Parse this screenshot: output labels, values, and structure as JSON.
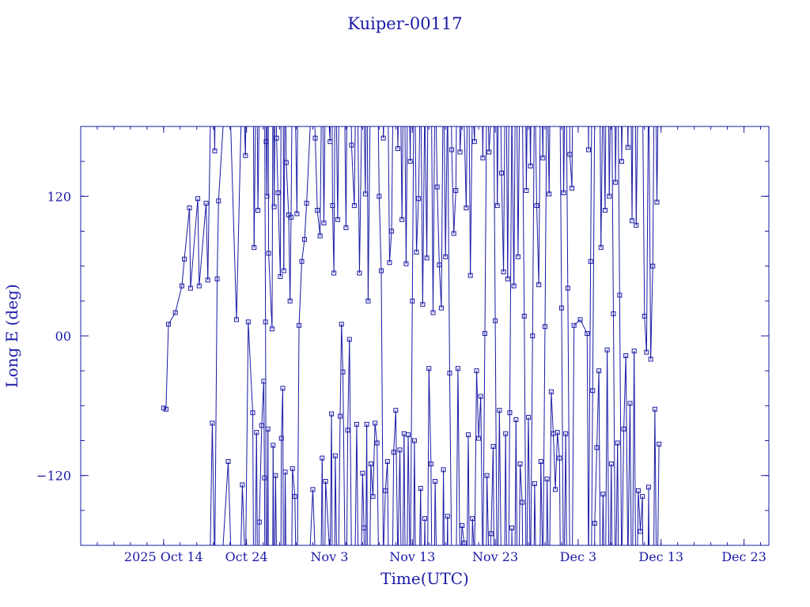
{
  "page": {
    "title": "Kuiper-00117"
  },
  "chart_data": {
    "type": "line",
    "title": "Kuiper-00117",
    "xlabel": "Time(UTC)",
    "ylabel": "Long E (deg)",
    "xlim": [
      "2025-10-04",
      "2025-12-26"
    ],
    "ylim": [
      -180,
      180
    ],
    "x_is_date": true,
    "longitude_wraps_at": [
      -180,
      180
    ],
    "x_ticks": [
      {
        "date": "2025-10-14",
        "label": "2025 Oct 14"
      },
      {
        "date": "2025-10-24",
        "label": "Oct 24"
      },
      {
        "date": "2025-11-03",
        "label": "Nov  3"
      },
      {
        "date": "2025-11-13",
        "label": "Nov 13"
      },
      {
        "date": "2025-11-23",
        "label": "Nov 23"
      },
      {
        "date": "2025-12-03",
        "label": "Dec  3"
      },
      {
        "date": "2025-12-13",
        "label": "Dec 13"
      },
      {
        "date": "2025-12-23",
        "label": "Dec 23"
      }
    ],
    "y_ticks": [
      {
        "value": 120,
        "label": "120"
      },
      {
        "value": 0,
        "label": "00"
      },
      {
        "value": -120,
        "label": "−120"
      }
    ],
    "grid": false,
    "legend": "none",
    "colors": {
      "series": "#1a1aa6",
      "frame": "#1a1aa6",
      "text": "#1a1aa6"
    },
    "marker": "square",
    "series": [
      {
        "points": [
          {
            "x": "2025-10-14 00:00",
            "y": -62
          },
          {
            "x": "2025-10-14 07:00",
            "y": -63
          },
          {
            "x": "2025-10-14 14:00",
            "y": 10
          },
          {
            "x": "2025-10-15 10:00",
            "y": 20
          },
          {
            "x": "2025-10-16 05:00",
            "y": 43
          },
          {
            "x": "2025-10-16 12:00",
            "y": 66
          },
          {
            "x": "2025-10-17 03:00",
            "y": 110
          },
          {
            "x": "2025-10-17 06:00",
            "y": 41
          },
          {
            "x": "2025-10-18 03:00",
            "y": 118
          },
          {
            "x": "2025-10-18 07:00",
            "y": 43
          },
          {
            "x": "2025-10-19 03:00",
            "y": 114
          },
          {
            "x": "2025-10-19 08:00",
            "y": 48
          },
          {
            "x": "2025-10-19 21:00",
            "y": -75
          },
          {
            "x": "2025-10-20 04:00",
            "y": 159
          },
          {
            "x": "2025-10-20 11:00",
            "y": 49
          },
          {
            "x": "2025-10-20 15:00",
            "y": 116
          },
          {
            "x": "2025-10-21 19:00",
            "y": -108
          },
          {
            "x": "2025-10-22 19:00",
            "y": 14
          },
          {
            "x": "2025-10-23 12:00",
            "y": -128
          },
          {
            "x": "2025-10-23 21:00",
            "y": 155
          },
          {
            "x": "2025-10-24 05:00",
            "y": 12
          },
          {
            "x": "2025-10-24 18:00",
            "y": -66
          },
          {
            "x": "2025-10-24 22:00",
            "y": 76
          },
          {
            "x": "2025-10-25 05:00",
            "y": -83
          },
          {
            "x": "2025-10-25 09:00",
            "y": 108
          },
          {
            "x": "2025-10-25 13:00",
            "y": -160
          },
          {
            "x": "2025-10-25 20:00",
            "y": -77
          },
          {
            "x": "2025-10-26 02:00",
            "y": -39
          },
          {
            "x": "2025-10-26 04:00",
            "y": -122
          },
          {
            "x": "2025-10-26 07:00",
            "y": 12
          },
          {
            "x": "2025-10-26 09:00",
            "y": 167
          },
          {
            "x": "2025-10-26 11:00",
            "y": 120
          },
          {
            "x": "2025-10-26 14:00",
            "y": -80
          },
          {
            "x": "2025-10-26 16:00",
            "y": 71
          },
          {
            "x": "2025-10-27 02:00",
            "y": 6
          },
          {
            "x": "2025-10-27 05:00",
            "y": -94
          },
          {
            "x": "2025-10-27 08:00",
            "y": 111
          },
          {
            "x": "2025-10-27 12:00",
            "y": -120
          },
          {
            "x": "2025-10-27 15:00",
            "y": 170
          },
          {
            "x": "2025-10-27 19:00",
            "y": 123
          },
          {
            "x": "2025-10-28 02:00",
            "y": 51
          },
          {
            "x": "2025-10-28 05:00",
            "y": -88
          },
          {
            "x": "2025-10-28 09:00",
            "y": -45
          },
          {
            "x": "2025-10-28 12:00",
            "y": 56
          },
          {
            "x": "2025-10-28 16:00",
            "y": -117
          },
          {
            "x": "2025-10-28 19:00",
            "y": 149
          },
          {
            "x": "2025-10-29 02:00",
            "y": 104
          },
          {
            "x": "2025-10-29 06:00",
            "y": 30
          },
          {
            "x": "2025-10-29 09:00",
            "y": 102
          },
          {
            "x": "2025-10-29 13:00",
            "y": -114
          },
          {
            "x": "2025-10-29 20:00",
            "y": -138
          },
          {
            "x": "2025-10-30 02:00",
            "y": 105
          },
          {
            "x": "2025-10-30 08:00",
            "y": 9
          },
          {
            "x": "2025-10-30 16:00",
            "y": 64
          },
          {
            "x": "2025-10-31 00:00",
            "y": 83
          },
          {
            "x": "2025-10-31 06:00",
            "y": 114
          },
          {
            "x": "2025-11-01 00:00",
            "y": -132
          },
          {
            "x": "2025-11-01 07:00",
            "y": 170
          },
          {
            "x": "2025-11-01 13:00",
            "y": 108
          },
          {
            "x": "2025-11-01 21:00",
            "y": 86
          },
          {
            "x": "2025-11-02 03:00",
            "y": -105
          },
          {
            "x": "2025-11-02 08:00",
            "y": 97
          },
          {
            "x": "2025-11-02 13:00",
            "y": -125
          },
          {
            "x": "2025-11-03 02:00",
            "y": 167
          },
          {
            "x": "2025-11-03 06:00",
            "y": -67
          },
          {
            "x": "2025-11-03 09:00",
            "y": 112
          },
          {
            "x": "2025-11-03 13:00",
            "y": 54
          },
          {
            "x": "2025-11-03 17:00",
            "y": -103
          },
          {
            "x": "2025-11-04 00:00",
            "y": 100
          },
          {
            "x": "2025-11-04 07:00",
            "y": -69
          },
          {
            "x": "2025-11-04 11:00",
            "y": 10
          },
          {
            "x": "2025-11-04 15:00",
            "y": -31
          },
          {
            "x": "2025-11-05 00:00",
            "y": 93
          },
          {
            "x": "2025-11-05 05:00",
            "y": -81
          },
          {
            "x": "2025-11-05 10:00",
            "y": -3
          },
          {
            "x": "2025-11-05 16:00",
            "y": 164
          },
          {
            "x": "2025-11-06 00:00",
            "y": 112
          },
          {
            "x": "2025-11-06 07:00",
            "y": -76
          },
          {
            "x": "2025-11-06 15:00",
            "y": 54
          },
          {
            "x": "2025-11-07 00:00",
            "y": -118
          },
          {
            "x": "2025-11-07 04:00",
            "y": -165
          },
          {
            "x": "2025-11-07 08:00",
            "y": 122
          },
          {
            "x": "2025-11-07 12:00",
            "y": -76
          },
          {
            "x": "2025-11-07 16:00",
            "y": 30
          },
          {
            "x": "2025-11-08 00:00",
            "y": -110
          },
          {
            "x": "2025-11-08 06:00",
            "y": -138
          },
          {
            "x": "2025-11-08 12:00",
            "y": -75
          },
          {
            "x": "2025-11-08 18:00",
            "y": -92
          },
          {
            "x": "2025-11-09 00:00",
            "y": 120
          },
          {
            "x": "2025-11-09 06:00",
            "y": 56
          },
          {
            "x": "2025-11-09 12:00",
            "y": 170
          },
          {
            "x": "2025-11-09 18:00",
            "y": -133
          },
          {
            "x": "2025-11-10 00:00",
            "y": -108
          },
          {
            "x": "2025-11-10 06:00",
            "y": 63
          },
          {
            "x": "2025-11-10 12:00",
            "y": 90
          },
          {
            "x": "2025-11-10 18:00",
            "y": -100
          },
          {
            "x": "2025-11-11 00:00",
            "y": -64
          },
          {
            "x": "2025-11-11 06:00",
            "y": 161
          },
          {
            "x": "2025-11-11 12:00",
            "y": -98
          },
          {
            "x": "2025-11-11 18:00",
            "y": 100
          },
          {
            "x": "2025-11-12 00:00",
            "y": -84
          },
          {
            "x": "2025-11-12 06:00",
            "y": 62
          },
          {
            "x": "2025-11-12 12:00",
            "y": -85
          },
          {
            "x": "2025-11-12 18:00",
            "y": 150
          },
          {
            "x": "2025-11-13 00:00",
            "y": 30
          },
          {
            "x": "2025-11-13 06:00",
            "y": -90
          },
          {
            "x": "2025-11-13 12:00",
            "y": 72
          },
          {
            "x": "2025-11-13 18:00",
            "y": 118
          },
          {
            "x": "2025-11-14 00:00",
            "y": -131
          },
          {
            "x": "2025-11-14 06:00",
            "y": 27
          },
          {
            "x": "2025-11-14 12:00",
            "y": -157
          },
          {
            "x": "2025-11-14 18:00",
            "y": 67
          },
          {
            "x": "2025-11-15 00:00",
            "y": -28
          },
          {
            "x": "2025-11-15 06:00",
            "y": -110
          },
          {
            "x": "2025-11-15 12:00",
            "y": 20
          },
          {
            "x": "2025-11-15 18:00",
            "y": -125
          },
          {
            "x": "2025-11-16 00:00",
            "y": 128
          },
          {
            "x": "2025-11-16 06:00",
            "y": 61
          },
          {
            "x": "2025-11-16 12:00",
            "y": 24
          },
          {
            "x": "2025-11-16 18:00",
            "y": -115
          },
          {
            "x": "2025-11-17 00:00",
            "y": 68
          },
          {
            "x": "2025-11-17 06:00",
            "y": -155
          },
          {
            "x": "2025-11-17 12:00",
            "y": -32
          },
          {
            "x": "2025-11-17 18:00",
            "y": 160
          },
          {
            "x": "2025-11-18 00:00",
            "y": 88
          },
          {
            "x": "2025-11-18 06:00",
            "y": 125
          },
          {
            "x": "2025-11-18 12:00",
            "y": -28
          },
          {
            "x": "2025-11-18 18:00",
            "y": 158
          },
          {
            "x": "2025-11-19 00:00",
            "y": -163
          },
          {
            "x": "2025-11-19 06:00",
            "y": -178
          },
          {
            "x": "2025-11-19 12:00",
            "y": 110
          },
          {
            "x": "2025-11-19 18:00",
            "y": -85
          },
          {
            "x": "2025-11-20 00:00",
            "y": 52
          },
          {
            "x": "2025-11-20 06:00",
            "y": -157
          },
          {
            "x": "2025-11-20 12:00",
            "y": 167
          },
          {
            "x": "2025-11-20 18:00",
            "y": -30
          },
          {
            "x": "2025-11-21 00:00",
            "y": -88
          },
          {
            "x": "2025-11-21 06:00",
            "y": -52
          },
          {
            "x": "2025-11-21 12:00",
            "y": 153
          },
          {
            "x": "2025-11-21 18:00",
            "y": 2
          },
          {
            "x": "2025-11-22 00:00",
            "y": -120
          },
          {
            "x": "2025-11-22 06:00",
            "y": 158
          },
          {
            "x": "2025-11-22 12:00",
            "y": -170
          },
          {
            "x": "2025-11-22 18:00",
            "y": -95
          },
          {
            "x": "2025-11-23 00:00",
            "y": 13
          },
          {
            "x": "2025-11-23 06:00",
            "y": 112
          },
          {
            "x": "2025-11-23 12:00",
            "y": -64
          },
          {
            "x": "2025-11-23 18:00",
            "y": 140
          },
          {
            "x": "2025-11-24 00:00",
            "y": 55
          },
          {
            "x": "2025-11-24 06:00",
            "y": -84
          },
          {
            "x": "2025-11-24 12:00",
            "y": 49
          },
          {
            "x": "2025-11-24 18:00",
            "y": -66
          },
          {
            "x": "2025-11-25 00:00",
            "y": -165
          },
          {
            "x": "2025-11-25 06:00",
            "y": 43
          },
          {
            "x": "2025-11-25 12:00",
            "y": -72
          },
          {
            "x": "2025-11-25 18:00",
            "y": 68
          },
          {
            "x": "2025-11-26 00:00",
            "y": -110
          },
          {
            "x": "2025-11-26 06:00",
            "y": -143
          },
          {
            "x": "2025-11-26 12:00",
            "y": 17
          },
          {
            "x": "2025-11-26 18:00",
            "y": 125
          },
          {
            "x": "2025-11-27 00:00",
            "y": -70
          },
          {
            "x": "2025-11-27 06:00",
            "y": 146
          },
          {
            "x": "2025-11-27 12:00",
            "y": 0
          },
          {
            "x": "2025-11-27 18:00",
            "y": -127
          },
          {
            "x": "2025-11-28 00:00",
            "y": 112
          },
          {
            "x": "2025-11-28 06:00",
            "y": 44
          },
          {
            "x": "2025-11-28 12:00",
            "y": -108
          },
          {
            "x": "2025-11-28 18:00",
            "y": 153
          },
          {
            "x": "2025-11-29 00:00",
            "y": 8
          },
          {
            "x": "2025-11-29 06:00",
            "y": -123
          },
          {
            "x": "2025-11-29 12:00",
            "y": 122
          },
          {
            "x": "2025-11-29 18:00",
            "y": -48
          },
          {
            "x": "2025-11-30 00:00",
            "y": -84
          },
          {
            "x": "2025-11-30 06:00",
            "y": -132
          },
          {
            "x": "2025-11-30 12:00",
            "y": -83
          },
          {
            "x": "2025-11-30 18:00",
            "y": -105
          },
          {
            "x": "2025-12-01 00:00",
            "y": 24
          },
          {
            "x": "2025-12-01 06:00",
            "y": 123
          },
          {
            "x": "2025-12-01 12:00",
            "y": -84
          },
          {
            "x": "2025-12-01 18:00",
            "y": 41
          },
          {
            "x": "2025-12-02 00:00",
            "y": 156
          },
          {
            "x": "2025-12-02 06:00",
            "y": 127
          },
          {
            "x": "2025-12-02 12:00",
            "y": 9
          },
          {
            "x": "2025-12-03 06:00",
            "y": 14
          },
          {
            "x": "2025-12-04 02:00",
            "y": 2
          },
          {
            "x": "2025-12-04 06:00",
            "y": 160
          },
          {
            "x": "2025-12-04 12:00",
            "y": 64
          },
          {
            "x": "2025-12-04 18:00",
            "y": -47
          },
          {
            "x": "2025-12-05 00:00",
            "y": -161
          },
          {
            "x": "2025-12-05 06:00",
            "y": -96
          },
          {
            "x": "2025-12-05 12:00",
            "y": -30
          },
          {
            "x": "2025-12-05 18:00",
            "y": 76
          },
          {
            "x": "2025-12-06 00:00",
            "y": -136
          },
          {
            "x": "2025-12-06 06:00",
            "y": 108
          },
          {
            "x": "2025-12-06 12:00",
            "y": -12
          },
          {
            "x": "2025-12-06 18:00",
            "y": 120
          },
          {
            "x": "2025-12-07 00:00",
            "y": -110
          },
          {
            "x": "2025-12-07 06:00",
            "y": 19
          },
          {
            "x": "2025-12-07 12:00",
            "y": 132
          },
          {
            "x": "2025-12-07 18:00",
            "y": -92
          },
          {
            "x": "2025-12-08 00:00",
            "y": 35
          },
          {
            "x": "2025-12-08 06:00",
            "y": 150
          },
          {
            "x": "2025-12-08 12:00",
            "y": -80
          },
          {
            "x": "2025-12-08 18:00",
            "y": -17
          },
          {
            "x": "2025-12-09 00:00",
            "y": 162
          },
          {
            "x": "2025-12-09 06:00",
            "y": -58
          },
          {
            "x": "2025-12-09 12:00",
            "y": 99
          },
          {
            "x": "2025-12-09 18:00",
            "y": -13
          },
          {
            "x": "2025-12-10 00:00",
            "y": 95
          },
          {
            "x": "2025-12-10 06:00",
            "y": -133
          },
          {
            "x": "2025-12-10 12:00",
            "y": -168
          },
          {
            "x": "2025-12-10 18:00",
            "y": -138
          },
          {
            "x": "2025-12-11 00:00",
            "y": 17
          },
          {
            "x": "2025-12-11 06:00",
            "y": -14
          },
          {
            "x": "2025-12-11 12:00",
            "y": -130
          },
          {
            "x": "2025-12-11 18:00",
            "y": -20
          },
          {
            "x": "2025-12-12 00:00",
            "y": 60
          },
          {
            "x": "2025-12-12 06:00",
            "y": -63
          },
          {
            "x": "2025-12-12 12:00",
            "y": 115
          },
          {
            "x": "2025-12-12 18:00",
            "y": -93
          }
        ]
      }
    ]
  }
}
